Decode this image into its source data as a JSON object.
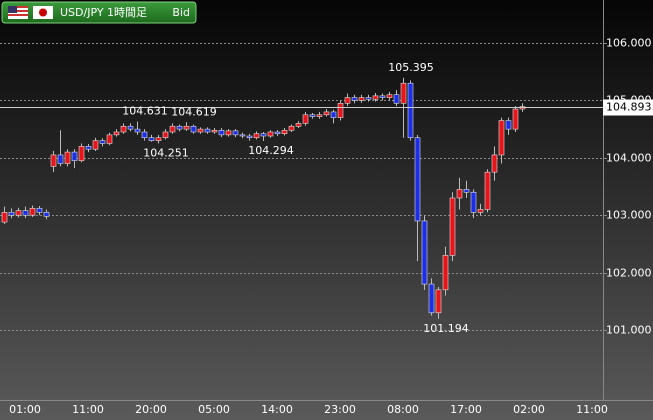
{
  "chart_data": {
    "type": "candlestick",
    "title": "USD/JPY 1時間足",
    "subtitle": "Bid",
    "up_color": "#e8141c",
    "down_color": "#1c2ee8",
    "categories": [
      null,
      null,
      null,
      "01:00",
      null,
      null,
      null,
      null,
      null,
      null,
      null,
      null,
      "11:00",
      null,
      null,
      null,
      null,
      null,
      null,
      null,
      null,
      "20:00",
      null,
      null,
      null,
      null,
      null,
      null,
      null,
      null,
      "05:00",
      null,
      null,
      null,
      null,
      null,
      null,
      null,
      null,
      "14:00",
      null,
      null,
      null,
      null,
      null,
      null,
      null,
      null,
      "23:00",
      null,
      null,
      null,
      null,
      null,
      null,
      null,
      null,
      "08:00",
      null,
      null,
      null,
      null,
      null,
      null,
      null,
      null,
      "17:00",
      null,
      null,
      null,
      null,
      null,
      null,
      null,
      null,
      "02:00",
      null,
      null,
      null,
      null,
      null,
      null,
      null,
      null,
      "11:00",
      null
    ],
    "open": [
      102.88,
      103.05,
      103.0,
      103.08,
      103.0,
      103.12,
      103.05,
      103.85,
      104.05,
      103.9,
      104.1,
      103.95,
      104.2,
      104.15,
      104.3,
      104.25,
      104.4,
      104.45,
      104.55,
      104.5,
      104.45,
      104.35,
      104.3,
      104.35,
      104.45,
      104.55,
      104.5,
      104.55,
      104.45,
      104.5,
      104.45,
      104.48,
      104.4,
      104.47,
      104.4,
      104.38,
      104.35,
      104.42,
      104.38,
      104.45,
      104.42,
      104.48,
      104.55,
      104.6,
      104.75,
      104.72,
      104.75,
      104.8,
      104.7,
      104.95,
      105.05,
      105.0,
      105.05,
      105.02,
      105.08,
      105.05,
      105.1,
      104.95,
      105.3,
      104.35,
      102.9,
      101.8,
      101.3,
      101.7,
      102.3,
      103.3,
      103.45,
      103.4,
      103.05,
      103.1,
      103.75,
      104.05,
      104.65,
      104.5,
      104.85,
      null,
      null,
      null,
      null,
      null,
      null,
      null,
      null,
      null,
      null,
      null
    ],
    "high": [
      103.15,
      103.12,
      103.13,
      103.15,
      103.17,
      103.16,
      103.1,
      104.12,
      104.48,
      104.15,
      104.15,
      104.25,
      104.24,
      104.35,
      104.34,
      104.44,
      104.5,
      104.6,
      104.6,
      104.631,
      104.5,
      104.4,
      104.4,
      104.5,
      104.6,
      104.58,
      104.619,
      104.58,
      104.53,
      104.53,
      104.52,
      104.52,
      104.5,
      104.5,
      104.44,
      104.42,
      104.46,
      104.45,
      104.48,
      104.48,
      104.52,
      104.58,
      104.64,
      104.8,
      104.78,
      104.8,
      104.85,
      104.84,
      105.0,
      105.12,
      105.1,
      105.1,
      105.1,
      105.13,
      105.12,
      105.15,
      105.18,
      105.395,
      105.35,
      104.4,
      103.0,
      101.9,
      101.75,
      102.45,
      103.4,
      103.65,
      103.6,
      103.45,
      103.2,
      103.8,
      104.2,
      104.7,
      104.7,
      104.9,
      104.95,
      null,
      null,
      null,
      null,
      null,
      null,
      null,
      null,
      null,
      null,
      null
    ],
    "low": [
      102.85,
      102.95,
      102.96,
      102.95,
      102.97,
      103.0,
      102.93,
      103.75,
      103.85,
      103.85,
      103.82,
      103.92,
      104.1,
      104.12,
      104.2,
      104.22,
      104.37,
      104.42,
      104.46,
      104.4,
      104.3,
      104.28,
      104.251,
      104.32,
      104.42,
      104.46,
      104.47,
      104.42,
      104.42,
      104.42,
      104.42,
      104.36,
      104.37,
      104.36,
      104.34,
      104.3,
      104.32,
      104.294,
      104.35,
      104.38,
      104.39,
      104.45,
      104.52,
      104.56,
      104.68,
      104.68,
      104.72,
      104.6,
      104.65,
      104.9,
      104.95,
      104.96,
      104.98,
      104.98,
      105.0,
      105.0,
      104.9,
      104.35,
      104.3,
      102.2,
      101.7,
      101.25,
      101.194,
      101.6,
      102.2,
      103.1,
      103.3,
      102.95,
      103.0,
      103.05,
      103.6,
      103.9,
      104.4,
      104.45,
      104.8,
      null,
      null,
      null,
      null,
      null,
      null,
      null,
      null,
      null,
      null,
      null
    ],
    "close": [
      103.05,
      103.0,
      103.08,
      103.0,
      103.12,
      103.05,
      102.98,
      104.05,
      103.9,
      104.1,
      103.95,
      104.2,
      104.15,
      104.3,
      104.25,
      104.4,
      104.45,
      104.55,
      104.5,
      104.45,
      104.35,
      104.3,
      104.35,
      104.45,
      104.55,
      104.5,
      104.55,
      104.45,
      104.5,
      104.45,
      104.48,
      104.4,
      104.47,
      104.4,
      104.38,
      104.35,
      104.42,
      104.38,
      104.45,
      104.42,
      104.48,
      104.55,
      104.6,
      104.75,
      104.72,
      104.75,
      104.8,
      104.7,
      104.95,
      105.05,
      105.0,
      105.05,
      105.02,
      105.08,
      105.05,
      105.1,
      104.95,
      105.3,
      104.35,
      102.9,
      101.8,
      101.3,
      101.7,
      102.3,
      103.3,
      103.45,
      103.4,
      103.05,
      103.1,
      103.75,
      104.05,
      104.65,
      104.5,
      104.85,
      104.893,
      null,
      null,
      null,
      null,
      null,
      null,
      null,
      null,
      null,
      null,
      null
    ],
    "annotations": [
      {
        "index": 19,
        "field": "high"
      },
      {
        "index": 22,
        "field": "low"
      },
      {
        "index": 26,
        "field": "high"
      },
      {
        "index": 37,
        "field": "low"
      },
      {
        "index": 57,
        "field": "high"
      },
      {
        "index": 62,
        "field": "low"
      }
    ],
    "ylim": [
      99.78,
      106.75
    ],
    "yticks": [
      {
        "value": 101,
        "label": "101.000"
      },
      {
        "value": 102,
        "label": "102.000"
      },
      {
        "value": 103,
        "label": "103.000"
      },
      {
        "value": 104,
        "label": "104.000"
      },
      {
        "value": 105,
        "label": "105.000"
      },
      {
        "value": 106,
        "label": "106.000"
      }
    ],
    "grid": true
  }
}
